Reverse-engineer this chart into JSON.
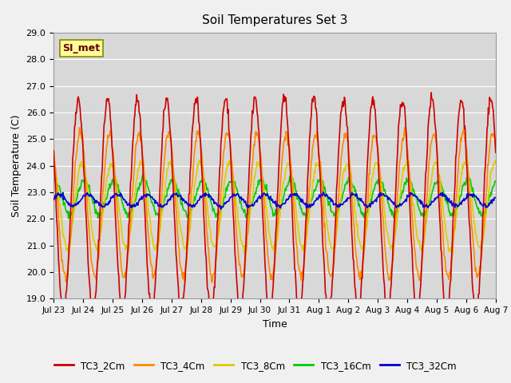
{
  "title": "Soil Temperatures Set 3",
  "xlabel": "Time",
  "ylabel": "Soil Temperature (C)",
  "ylim": [
    19.0,
    29.0
  ],
  "yticks": [
    19.0,
    20.0,
    21.0,
    22.0,
    23.0,
    24.0,
    25.0,
    26.0,
    27.0,
    28.0,
    29.0
  ],
  "xtick_labels": [
    "Jul 23",
    "Jul 24",
    "Jul 25",
    "Jul 26",
    "Jul 27",
    "Jul 28",
    "Jul 29",
    "Jul 30",
    "Jul 31",
    "Aug 1",
    "Aug 2",
    "Aug 3",
    "Aug 4",
    "Aug 5",
    "Aug 6",
    "Aug 7"
  ],
  "n_days": 15,
  "series_colors": {
    "TC3_2Cm": "#cc0000",
    "TC3_4Cm": "#ff8800",
    "TC3_8Cm": "#ddcc00",
    "TC3_16Cm": "#00cc00",
    "TC3_32Cm": "#0000cc"
  },
  "legend_label": "SI_met",
  "fig_bg_color": "#f0f0f0",
  "plot_bg_color": "#d8d8d8"
}
